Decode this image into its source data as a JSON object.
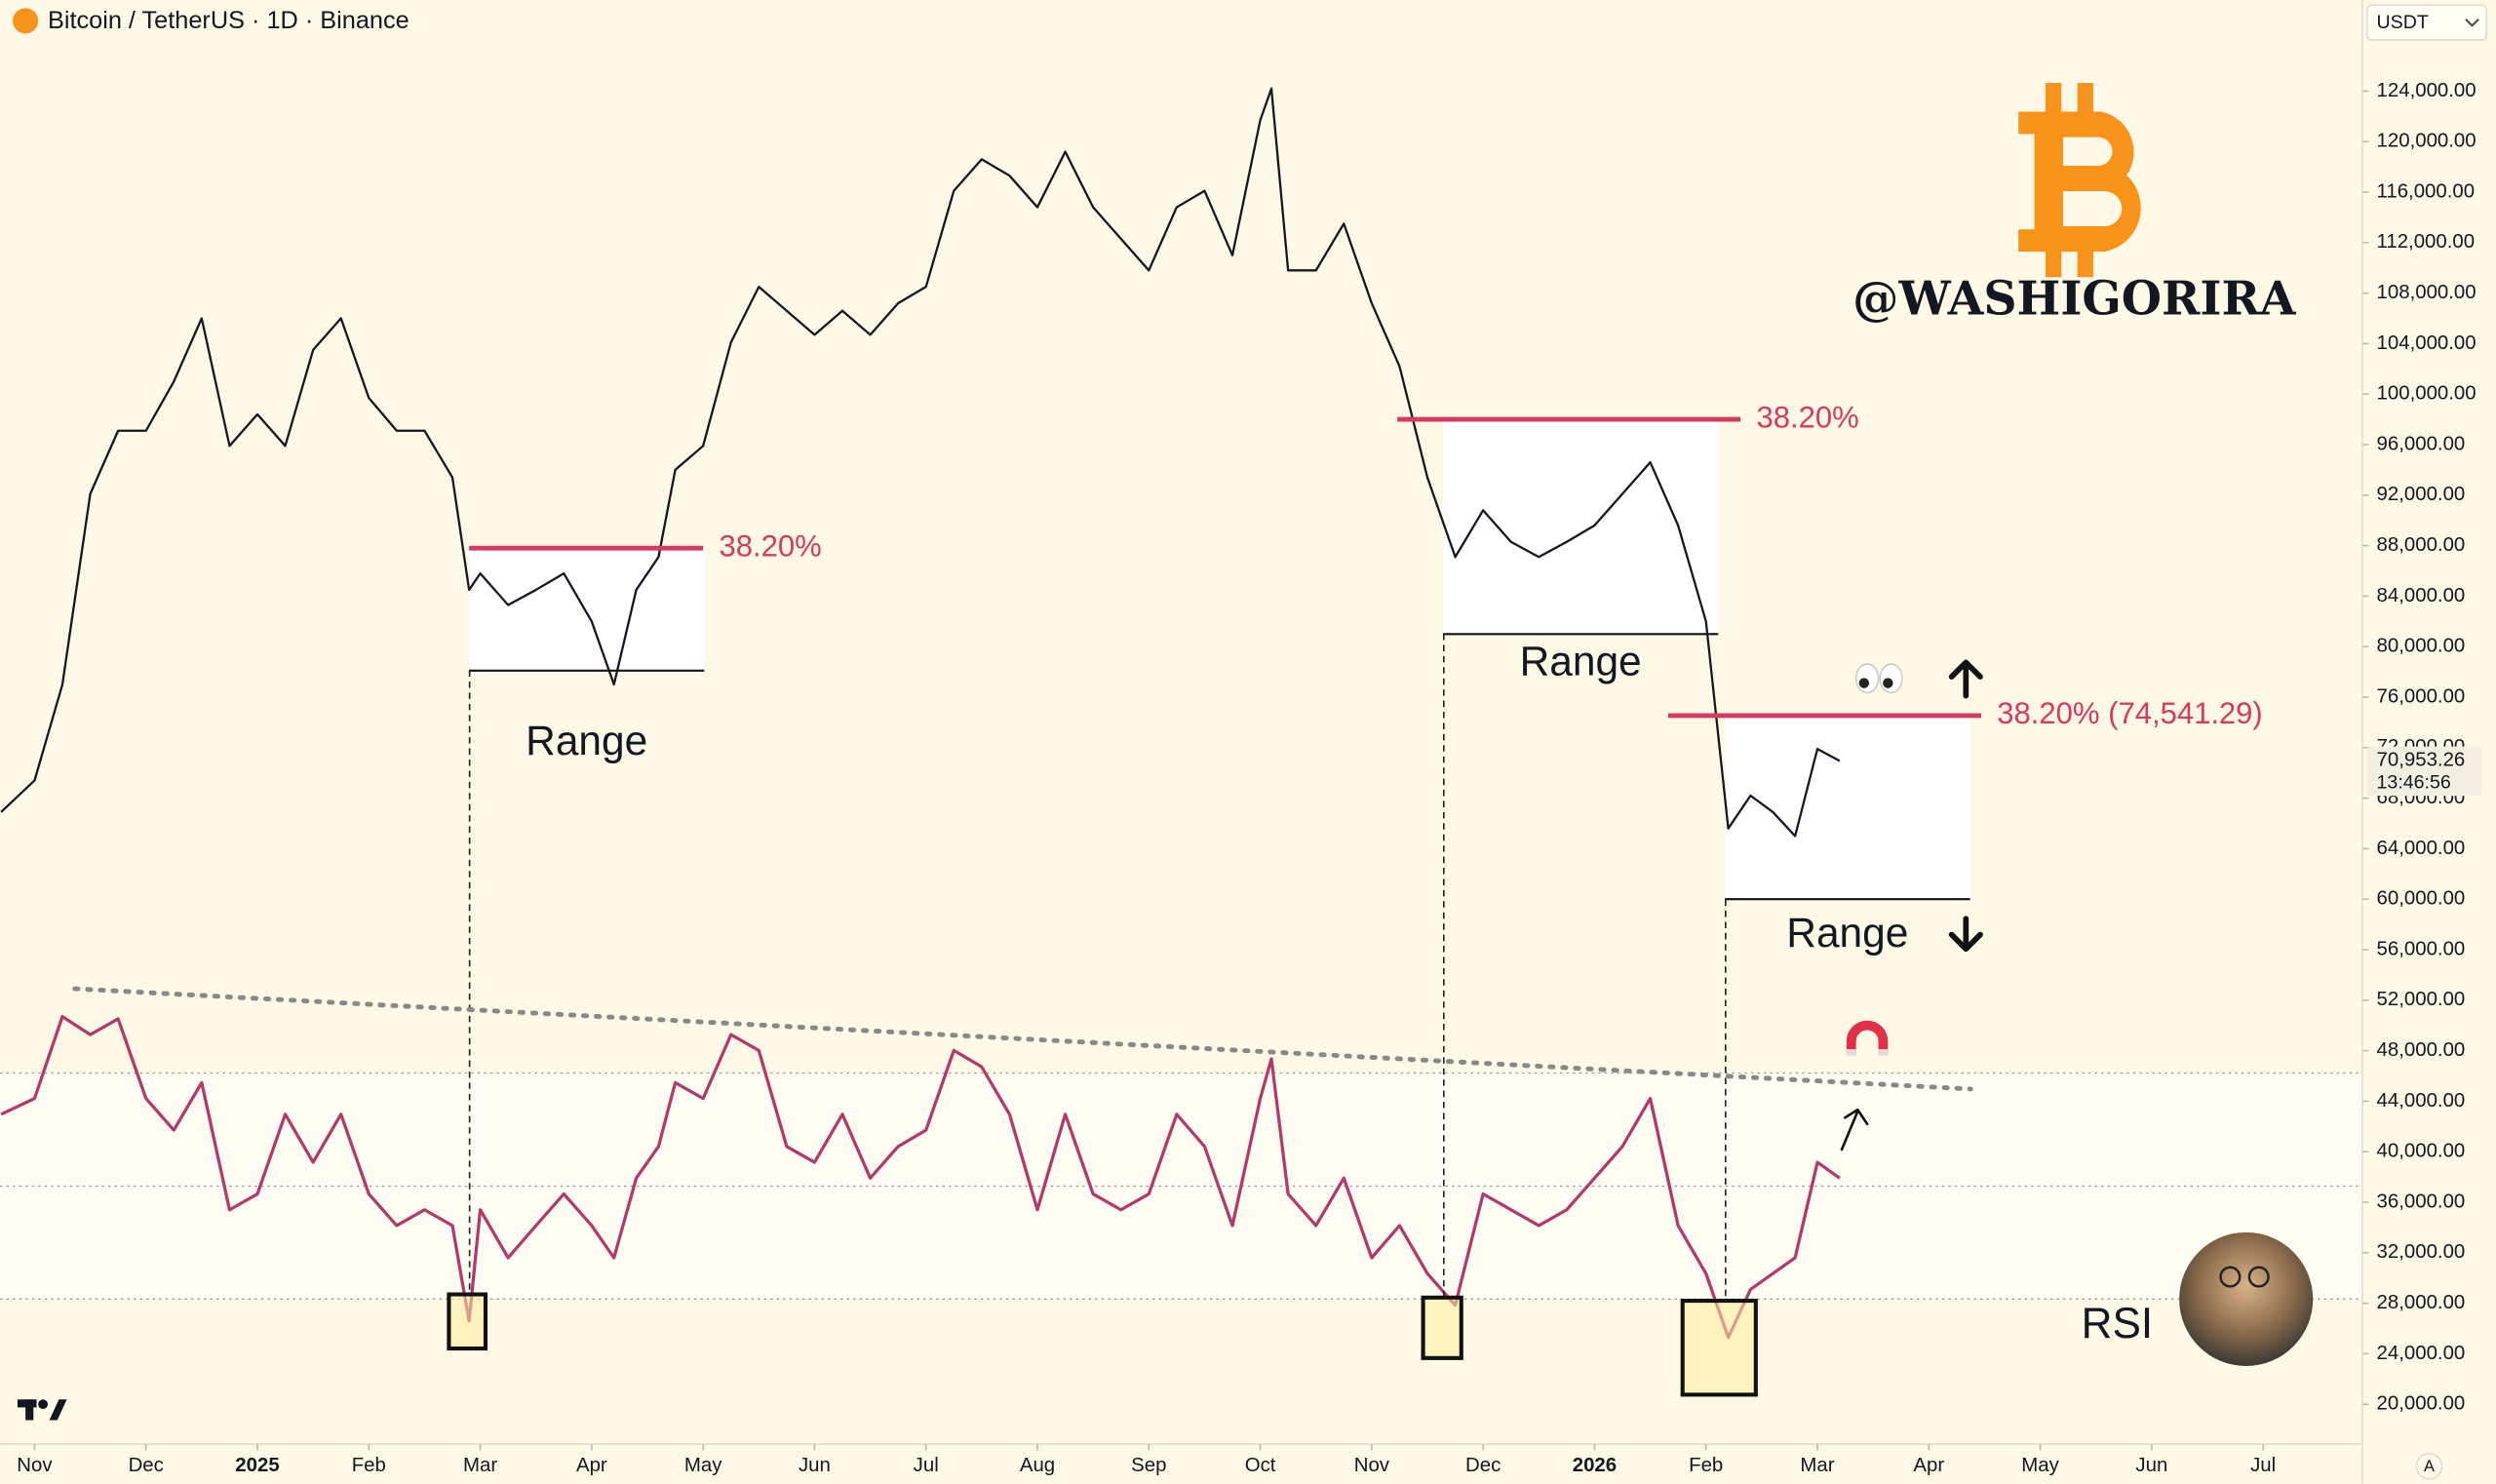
{
  "chart_data": {
    "type": "line",
    "title": "Bitcoin / TetherUS · 1D · Binance",
    "x": [
      -0.3,
      0,
      0.25,
      0.5,
      0.75,
      1,
      1.25,
      1.5,
      1.75,
      2,
      2.25,
      2.5,
      2.75,
      3,
      3.25,
      3.5,
      3.75,
      3.9,
      4,
      4.25,
      4.5,
      4.75,
      5,
      5.2,
      5.4,
      5.6,
      5.75,
      6,
      6.25,
      6.5,
      6.75,
      7,
      7.25,
      7.5,
      7.75,
      8,
      8.25,
      8.5,
      8.75,
      9,
      9.25,
      9.5,
      9.75,
      10,
      10.25,
      10.5,
      10.75,
      11,
      11.1,
      11.25,
      11.5,
      11.75,
      12,
      12.25,
      12.5,
      12.75,
      13,
      13.25,
      13.5,
      13.75,
      14,
      14.25,
      14.5,
      14.75,
      15,
      15.2,
      15.4,
      15.6,
      15.8,
      16,
      16.2
    ],
    "series": [
      {
        "color": "#131722",
        "values": [
          66900,
          69400,
          77000,
          92100,
          97100,
          97100,
          101000,
          106000,
          95900,
          98400,
          95900,
          103500,
          106000,
          99700,
          97100,
          97100,
          93400,
          84500,
          85800,
          83300,
          84500,
          85800,
          82000,
          77000,
          84500,
          87100,
          94000,
          95900,
          104100,
          108500,
          106600,
          104700,
          106600,
          104700,
          107200,
          108500,
          116100,
          118600,
          117300,
          114800,
          119200,
          114800,
          112300,
          109800,
          114800,
          116100,
          111000,
          121700,
          124200,
          109800,
          109800,
          113500,
          107200,
          102200,
          93400,
          87100,
          90800,
          88300,
          87100,
          88300,
          89600,
          92100,
          94600,
          89600,
          82000,
          65600,
          68200,
          66900,
          65000,
          71900,
          70953.26
        ]
      },
      {
        "name": "RSI",
        "axis": "y2",
        "color": "#b23a6b",
        "values": [
          62.7,
          65.5,
          80,
          76.8,
          79.6,
          65.5,
          59.9,
          68.3,
          45.8,
          48.6,
          62.7,
          54.2,
          62.7,
          48.6,
          43,
          45.8,
          43,
          26.1,
          45.8,
          37.3,
          43,
          48.6,
          43,
          37.3,
          51.4,
          57,
          68.3,
          65.5,
          76.8,
          74,
          57,
          54.2,
          62.7,
          51.4,
          57,
          59.9,
          74,
          71.1,
          62.7,
          45.8,
          62.7,
          48.6,
          45.8,
          48.6,
          62.7,
          57,
          43,
          65.5,
          72.5,
          48.6,
          43,
          51.4,
          37.3,
          43,
          34.5,
          28.9,
          48.6,
          45.8,
          43,
          45.8,
          51.4,
          57,
          65.5,
          43,
          34.5,
          23.2,
          31.7,
          34.5,
          37.3,
          54.2,
          51.4
        ]
      }
    ],
    "xlim": [
      -0.31,
      20.89
    ],
    "xticks": [
      {
        "value": 0,
        "label": "Nov"
      },
      {
        "value": 1,
        "label": "Dec"
      },
      {
        "value": 2,
        "label": "2025"
      },
      {
        "value": 3,
        "label": "Feb"
      },
      {
        "value": 4,
        "label": "Mar"
      },
      {
        "value": 5,
        "label": "Apr"
      },
      {
        "value": 6,
        "label": "May"
      },
      {
        "value": 7,
        "label": "Jun"
      },
      {
        "value": 8,
        "label": "Jul"
      },
      {
        "value": 9,
        "label": "Aug"
      },
      {
        "value": 10,
        "label": "Sep"
      },
      {
        "value": 11,
        "label": "Oct"
      },
      {
        "value": 12,
        "label": "Nov"
      },
      {
        "value": 13,
        "label": "Dec"
      },
      {
        "value": 14,
        "label": "2026"
      },
      {
        "value": 15,
        "label": "Feb"
      },
      {
        "value": 16,
        "label": "Mar"
      },
      {
        "value": 17,
        "label": "Apr"
      },
      {
        "value": 18,
        "label": "May"
      },
      {
        "value": 19,
        "label": "Jun"
      },
      {
        "value": 20,
        "label": "Jul"
      }
    ],
    "ylim": [
      17100,
      131200
    ],
    "yticks": [
      {
        "value": 20000,
        "label": "20,000.00"
      },
      {
        "value": 24000,
        "label": "24,000.00"
      },
      {
        "value": 28000,
        "label": "28,000.00"
      },
      {
        "value": 32000,
        "label": "32,000.00"
      },
      {
        "value": 36000,
        "label": "36,000.00"
      },
      {
        "value": 40000,
        "label": "40,000.00"
      },
      {
        "value": 44000,
        "label": "44,000.00"
      },
      {
        "value": 48000,
        "label": "48,000.00"
      },
      {
        "value": 52000,
        "label": "52,000.00"
      },
      {
        "value": 56000,
        "label": "56,000.00"
      },
      {
        "value": 60000,
        "label": "60,000.00"
      },
      {
        "value": 64000,
        "label": "64,000.00"
      },
      {
        "value": 68000,
        "label": "68,000.00"
      },
      {
        "value": 72000,
        "label": "72,000.00"
      },
      {
        "value": 76000,
        "label": "76,000.00"
      },
      {
        "value": 80000,
        "label": "80,000.00"
      },
      {
        "value": 84000,
        "label": "84,000.00"
      },
      {
        "value": 88000,
        "label": "88,000.00"
      },
      {
        "value": 92000,
        "label": "92,000.00"
      },
      {
        "value": 96000,
        "label": "96,000.00"
      },
      {
        "value": 100000,
        "label": "100,000.00"
      },
      {
        "value": 104000,
        "label": "104,000.00"
      },
      {
        "value": 108000,
        "label": "108,000.00"
      },
      {
        "value": 112000,
        "label": "112,000.00"
      },
      {
        "value": 116000,
        "label": "116,000.00"
      },
      {
        "value": 120000,
        "label": "120,000.00"
      },
      {
        "value": 124000,
        "label": "124,000.00"
      }
    ],
    "y2lim": [
      4.9,
      259.9
    ],
    "rsi_levels": [
      30,
      50,
      70
    ],
    "current_price": {
      "value": 70953.26,
      "label": "70,953.26"
    },
    "countdown": "13:46:56",
    "quote_currency": "USDT",
    "levels": [
      {
        "label": "38.20%",
        "value": 87800,
        "x": [
          3.9,
          6.0
        ]
      },
      {
        "label": "38.20%",
        "value": 98000,
        "x": [
          12.23,
          15.31
        ]
      },
      {
        "label": "38.20% (74,541.29)",
        "value": 74541.29,
        "x": [
          14.66,
          17.47
        ]
      }
    ],
    "ranges": [
      {
        "label": "Range",
        "top": 87800,
        "bottom": 78100,
        "x": [
          3.9,
          6.01
        ]
      },
      {
        "label": "Range",
        "top": 98000,
        "bottom": 81000,
        "x": [
          12.64,
          15.11
        ]
      },
      {
        "label": "Range",
        "top": 74541.29,
        "bottom": 60000,
        "x": [
          15.17,
          17.37
        ]
      }
    ],
    "watermark": "@WASHIGORIRA",
    "scale_button": "A"
  }
}
